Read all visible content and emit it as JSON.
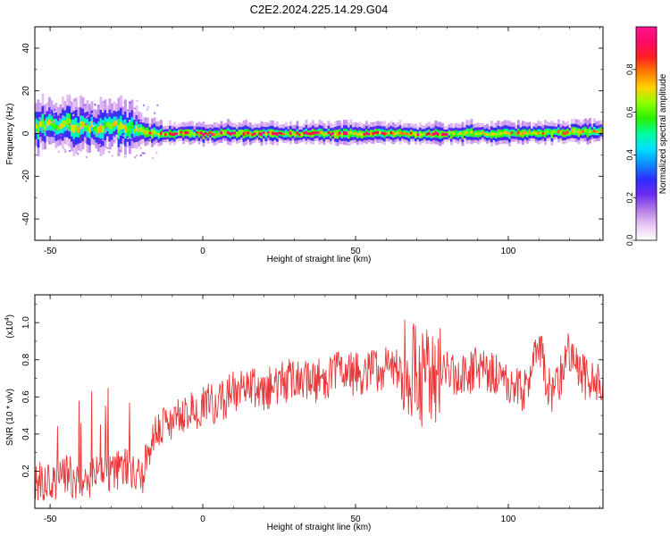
{
  "chart_data": [
    {
      "type": "heatmap",
      "title": "C2E2.2024.225.14.29.G04",
      "xlabel": "Height of straight line (km)",
      "ylabel": "Frequency (Hz)",
      "xlim": [
        -55,
        131
      ],
      "ylim": [
        -50,
        50
      ],
      "xticks": [
        -50,
        0,
        50,
        100
      ],
      "yticks": [
        -40,
        -20,
        0,
        20,
        40
      ],
      "colorbar": {
        "label": "Normalized spectral amplitude",
        "range": [
          0,
          1
        ],
        "ticks": [
          0.0,
          0.2,
          0.4,
          0.6,
          0.8
        ],
        "tick_labels": [
          "0.0",
          "0.2",
          "0.4",
          "0.6",
          "0.8"
        ],
        "colors": [
          "#ffffff",
          "#e9c8f5",
          "#b57be8",
          "#6c2bf0",
          "#2f2dff",
          "#0d8cff",
          "#00e0ff",
          "#00ff9c",
          "#29f000",
          "#8dff00",
          "#ffd200",
          "#ff7e00",
          "#ff2020",
          "#ff0a64",
          "#ff1493"
        ]
      },
      "band": {
        "x": [
          -55,
          -45,
          -35,
          -25,
          -20,
          -15,
          0,
          25,
          50,
          75,
          100,
          131
        ],
        "center": [
          3,
          4,
          3,
          3,
          1,
          0,
          0,
          0,
          0,
          0,
          0,
          1
        ],
        "halfwidth": [
          7,
          7,
          7,
          7,
          4,
          3,
          3,
          3,
          3,
          3,
          3,
          3
        ]
      }
    },
    {
      "type": "line",
      "xlabel": "Height of straight line (km)",
      "ylabel": "SNR (10 * v/v)",
      "y_exponent": "(x10",
      "y_exponent_power": "4",
      "y_exponent_close": ")",
      "xlim": [
        -55,
        131
      ],
      "ylim": [
        0.0,
        1.15
      ],
      "xticks": [
        -50,
        0,
        50,
        100
      ],
      "yticks": [
        0.2,
        0.4,
        0.6,
        0.8,
        1.0
      ],
      "ytick_labels": [
        "0.2",
        "0.4",
        "0.6",
        "0.8",
        "1.0"
      ],
      "line_color": "#e8383a",
      "series": [
        {
          "x": [
            -55,
            -50,
            -45,
            -40,
            -35,
            -30,
            -25,
            -20,
            -18,
            -16,
            -14,
            -12,
            -10,
            -8,
            -6,
            -4,
            -2,
            0,
            5,
            10,
            15,
            20,
            25,
            30,
            35,
            40,
            45,
            50,
            55,
            60,
            65,
            70,
            72,
            74,
            76,
            80,
            85,
            90,
            95,
            100,
            105,
            108,
            110,
            112,
            115,
            120,
            125,
            128,
            131
          ],
          "y": [
            0.15,
            0.14,
            0.18,
            0.15,
            0.17,
            0.2,
            0.22,
            0.15,
            0.3,
            0.4,
            0.44,
            0.46,
            0.47,
            0.49,
            0.5,
            0.53,
            0.52,
            0.55,
            0.58,
            0.62,
            0.63,
            0.64,
            0.67,
            0.7,
            0.68,
            0.7,
            0.73,
            0.72,
            0.74,
            0.75,
            0.77,
            0.76,
            0.7,
            0.72,
            0.68,
            0.75,
            0.7,
            0.77,
            0.74,
            0.66,
            0.63,
            0.75,
            0.92,
            0.7,
            0.6,
            0.85,
            0.7,
            0.72,
            0.65
          ]
        }
      ]
    }
  ]
}
